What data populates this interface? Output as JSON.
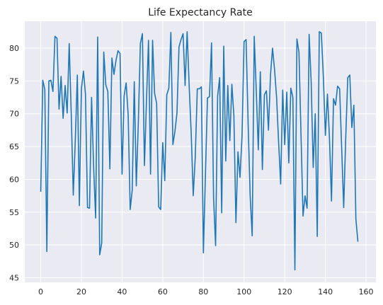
{
  "chart_data": {
    "type": "line",
    "title": "Life Expectancy Rate",
    "xlabel": "",
    "ylabel": "",
    "xlim": [
      -7.85,
      164.85
    ],
    "ylim": [
      44.3,
      84.1
    ],
    "xticks": [
      0,
      20,
      40,
      60,
      80,
      100,
      120,
      140,
      160
    ],
    "yticks": [
      45,
      50,
      55,
      60,
      65,
      70,
      75,
      80
    ],
    "grid": true,
    "colors": {
      "plot_background": "#eaeaf2",
      "line": "#1f77b4",
      "grid": "#ffffff"
    },
    "series": [
      {
        "values": [
          58.1,
          75.1,
          73.7,
          49.0,
          75.0,
          75.1,
          73.4,
          81.8,
          81.5,
          70.7,
          75.7,
          69.3,
          74.3,
          70.1,
          80.7,
          70.0,
          57.6,
          66.0,
          75.9,
          56.0,
          73.8,
          76.5,
          73.0,
          55.7,
          55.6,
          72.5,
          62.0,
          54.1,
          81.7,
          48.5,
          50.3,
          79.4,
          74.4,
          73.4,
          61.6,
          78.5,
          76.0,
          78.1,
          79.6,
          79.2,
          60.8,
          72.7,
          74.7,
          69.8,
          55.4,
          58.4,
          74.9,
          59.0,
          68.7,
          80.7,
          82.2,
          62.1,
          71.9,
          81.2,
          60.8,
          81.2,
          73.1,
          71.6,
          55.8,
          55.4,
          65.6,
          59.8,
          72.9,
          73.9,
          82.4,
          65.3,
          67.3,
          70.1,
          80.2,
          81.3,
          82.2,
          74.3,
          82.5,
          74.3,
          67.0,
          57.5,
          63.4,
          73.8,
          73.8,
          74.1,
          48.8,
          60.7,
          72.4,
          72.6,
          80.8,
          57.2,
          49.9,
          72.7,
          75.5,
          54.9,
          80.3,
          62.8,
          74.3,
          65.9,
          74.5,
          69.6,
          53.4,
          64.2,
          60.3,
          66.6,
          81.0,
          81.3,
          68.5,
          57.5,
          51.4,
          81.8,
          73.5,
          64.5,
          76.4,
          61.5,
          72.9,
          73.5,
          67.5,
          75.9,
          80.0,
          76.7,
          72.5,
          65.6,
          59.3,
          73.6,
          65.3,
          73.3,
          62.5,
          73.9,
          72.5,
          46.2,
          81.4,
          79.4,
          66.9,
          54.4,
          57.5,
          55.6,
          82.1,
          74.9,
          61.8,
          70.0,
          51.3,
          82.5,
          82.3,
          75.6,
          66.7,
          73.0,
          66.3,
          56.7,
          72.3,
          71.3,
          74.2,
          73.8,
          64.8,
          55.7,
          66.3,
          75.5,
          75.9,
          67.9,
          71.3,
          53.9,
          50.5
        ]
      }
    ]
  }
}
